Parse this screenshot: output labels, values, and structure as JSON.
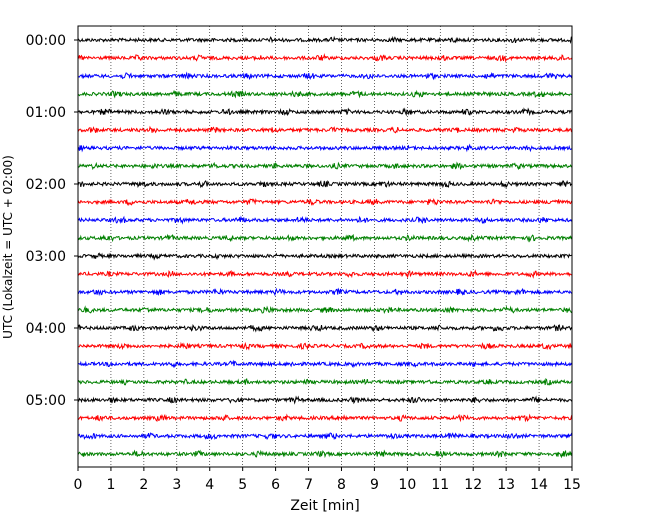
{
  "chart_data": {
    "type": "line",
    "title": "",
    "xlabel": "Zeit  [min]",
    "ylabel": "UTC (Lokalzeit = UTC + 02:00)",
    "xlim": [
      0,
      15
    ],
    "x_ticks": [
      "0",
      "1",
      "2",
      "3",
      "4",
      "5",
      "6",
      "7",
      "8",
      "9",
      "10",
      "11",
      "12",
      "13",
      "14",
      "15"
    ],
    "y_ticks": [
      "00:00",
      "01:00",
      "02:00",
      "03:00",
      "04:00",
      "05:00"
    ],
    "trace_interval_min": 15,
    "trace_count": 24,
    "trace_colors": [
      "#000000",
      "#ff0000",
      "#0000ff",
      "#008000"
    ],
    "grid": "vertical-dotted",
    "legend": "none"
  }
}
